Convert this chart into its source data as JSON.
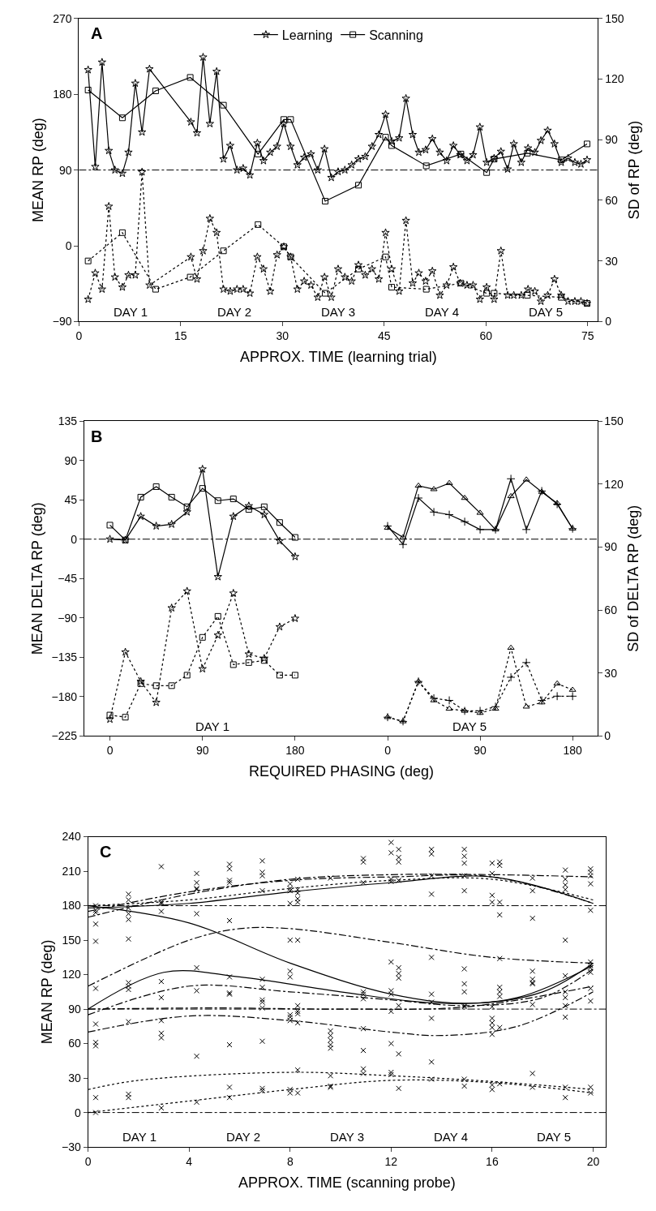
{
  "chart_data": [
    {
      "type": "line",
      "title": "A",
      "xlabel": "APPROX. TIME (learning trial)",
      "ylabel": "MEAN RP (deg)",
      "y2label": "SD of RP (deg)",
      "xlim": [
        0,
        76.5
      ],
      "xticks": [
        0,
        15,
        30,
        45,
        60,
        75
      ],
      "ylim": [
        -90,
        270
      ],
      "yticks": [
        {
          "value": -90,
          "label": "−90"
        },
        0,
        90,
        180,
        270
      ],
      "y2lim": [
        0,
        150
      ],
      "y2ticks": [
        0,
        30,
        60,
        90,
        120,
        150
      ],
      "legend": "top",
      "ref_lines": [
        {
          "axis": "y",
          "value": 90,
          "line_style": "dashed"
        }
      ],
      "annotations": [
        "DAY 1",
        "DAY 2",
        "DAY 3",
        "DAY 4",
        "DAY 5"
      ],
      "series": [
        {
          "name": "Learning",
          "color": "#000000",
          "marker": "star",
          "line_style": "solid",
          "x": [
            1.35,
            2.4,
            3.4,
            4.4,
            5.3,
            6.4,
            7.3,
            8.3,
            9.3,
            10.4,
            16.5,
            17.4,
            18.3,
            19.3,
            20.3,
            21.3,
            22.3,
            23.3,
            24.2,
            25.2,
            26.3,
            27.2,
            28.2,
            29.2,
            30.2,
            31.2,
            32.2,
            33.2,
            34.2,
            35.2,
            36.2,
            37.2,
            38.2,
            39.2,
            40.2,
            41.2,
            42.2,
            43.2,
            44.2,
            45.2,
            46.1,
            47.2,
            48.2,
            49.2,
            50.1,
            51.1,
            52.1,
            53.2,
            54.2,
            55.2,
            56.2,
            57.2,
            58.1,
            59.1,
            60.1,
            61.2,
            62.2,
            63.2,
            64.1,
            65.2,
            66.2,
            67.2,
            68.1,
            69.1,
            70.1,
            71.1,
            72.1,
            73.1,
            74.0,
            74.9
          ],
          "values": [
            209,
            94,
            218,
            113,
            90,
            86,
            111,
            193,
            135,
            210,
            147,
            134,
            224,
            145,
            207,
            103,
            119,
            90,
            92,
            84,
            122,
            101,
            111,
            118,
            145,
            118,
            96,
            105,
            109,
            90,
            115,
            81,
            88,
            90,
            96,
            103,
            106,
            118,
            132,
            156,
            124,
            128,
            175,
            132,
            111,
            114,
            127,
            111,
            101,
            119,
            108,
            101,
            108,
            141,
            99,
            104,
            112,
            91,
            121,
            99,
            116,
            111,
            125,
            137,
            121,
            99,
            104,
            99,
            97,
            102
          ]
        },
        {
          "name": "Scanning",
          "color": "#000000",
          "marker": "square",
          "line_style": "solid",
          "x": [
            1.35,
            6.4,
            11.3,
            16.4,
            21.3,
            26.4,
            30.2,
            31.2,
            36.3,
            41.2,
            45.2,
            46.1,
            51.2,
            56.3,
            60.1,
            61.2,
            66.1,
            71.1,
            74.9
          ],
          "values": [
            185,
            152,
            184,
            200,
            167,
            109,
            150,
            150,
            53,
            72,
            129,
            119,
            95,
            109,
            87,
            103,
            110,
            102,
            121
          ]
        },
        {
          "color": "#000000",
          "marker": "star",
          "line_style": "dotted",
          "axis": "y2",
          "x": [
            1.35,
            2.4,
            3.4,
            4.4,
            5.3,
            6.4,
            7.3,
            8.3,
            9.3,
            10.4,
            16.5,
            17.4,
            18.3,
            19.3,
            20.3,
            21.3,
            22.3,
            23.3,
            24.2,
            25.2,
            26.3,
            27.2,
            28.2,
            29.2,
            30.2,
            31.2,
            32.2,
            33.2,
            34.2,
            35.2,
            36.2,
            37.2,
            38.2,
            39.2,
            40.2,
            41.2,
            42.2,
            43.2,
            44.2,
            45.2,
            46.1,
            47.2,
            48.2,
            49.2,
            50.1,
            51.1,
            52.1,
            53.2,
            54.2,
            55.2,
            56.2,
            57.2,
            58.1,
            59.1,
            60.1,
            61.2,
            62.2,
            63.2,
            64.1,
            65.2,
            66.2,
            67.2,
            68.1,
            69.1,
            70.1,
            71.1,
            72.1,
            73.1,
            74.0,
            74.9
          ],
          "values": [
            11,
            24,
            16,
            57,
            22,
            17,
            23,
            23,
            74,
            18,
            32,
            21,
            35,
            51,
            44,
            16,
            15,
            16,
            16,
            14,
            32,
            26,
            15,
            33,
            37,
            32,
            16,
            20,
            18,
            12,
            22,
            12,
            26,
            22,
            20,
            28,
            23,
            26,
            21,
            44,
            26,
            15,
            50,
            19,
            24,
            20,
            25,
            13,
            18,
            27,
            19,
            18,
            18,
            11,
            17,
            11,
            35,
            13,
            13,
            13,
            16,
            15,
            10,
            13,
            21,
            13,
            10,
            10,
            10,
            9
          ]
        },
        {
          "color": "#000000",
          "marker": "square",
          "line_style": "dotted",
          "axis": "y2",
          "x": [
            1.35,
            6.4,
            11.3,
            16.4,
            21.3,
            26.4,
            30.2,
            31.2,
            36.3,
            41.2,
            45.2,
            46.1,
            51.2,
            56.3,
            60.1,
            61.2,
            66.1,
            71.1,
            74.9
          ],
          "values": [
            30,
            44,
            16,
            22,
            35,
            48,
            37,
            32,
            14,
            26,
            32,
            17,
            16,
            19,
            14,
            14,
            13,
            12,
            9
          ]
        }
      ]
    },
    {
      "type": "line",
      "title": "B",
      "xlabel": "REQUIRED PHASING (deg)",
      "ylabel": "MEAN DELTA RP (deg)",
      "tick_labels": "xy",
      "xlim": [
        -25,
        225
      ],
      "xticks": [
        0,
        90,
        180
      ],
      "ylim": [
        -225,
        135
      ],
      "yticks": [
        {
          "value": -225,
          "label": "−225"
        },
        {
          "value": -180,
          "label": "−180"
        },
        {
          "value": -135,
          "label": "−135"
        },
        {
          "value": -90,
          "label": "−90"
        },
        {
          "value": -45,
          "label": "−45"
        },
        0,
        45,
        90,
        135
      ],
      "y2lim": [
        0,
        150
      ],
      "ref_lines": [
        {
          "axis": "y",
          "value": 0,
          "line_style": "dashed"
        }
      ],
      "annotations": [
        "DAY 1"
      ],
      "series": [
        {
          "color": "#000000",
          "marker": "star",
          "line_style": "solid",
          "x": [
            0,
            15,
            30,
            45,
            60,
            75,
            90,
            105,
            120,
            135,
            150,
            165,
            180
          ],
          "values": [
            0,
            -1,
            26,
            15,
            17,
            31,
            80,
            -43,
            26,
            38,
            28,
            -2,
            -20
          ]
        },
        {
          "color": "#000000",
          "marker": "square",
          "line_style": "solid",
          "x": [
            0,
            15,
            30,
            45,
            60,
            75,
            90,
            105,
            120,
            135,
            150,
            165,
            180
          ],
          "values": [
            16,
            -1,
            48,
            60,
            48,
            37,
            58,
            44,
            46,
            34,
            37,
            19,
            2
          ]
        },
        {
          "color": "#000000",
          "marker": "star",
          "line_style": "dotted",
          "axis": "y2",
          "x": [
            0,
            15,
            30,
            45,
            60,
            75,
            90,
            105,
            120,
            135,
            150,
            165,
            180
          ],
          "values": [
            8,
            40,
            26,
            16,
            61,
            69,
            32,
            48,
            68,
            39,
            37,
            52,
            56
          ]
        },
        {
          "color": "#000000",
          "marker": "square",
          "line_style": "dotted",
          "axis": "y2",
          "x": [
            0,
            15,
            30,
            45,
            60,
            75,
            90,
            105,
            120,
            135,
            150,
            165,
            180
          ],
          "values": [
            10,
            9,
            25,
            24,
            24,
            29,
            47,
            57,
            34,
            35,
            36,
            29,
            29
          ]
        }
      ]
    },
    {
      "type": "line",
      "y2label": "SD of DELTA RP (deg)",
      "tick_labels": "xy2",
      "xlim": [
        -45,
        204
      ],
      "xticks": [
        0,
        90,
        180
      ],
      "ylim": [
        -225,
        135
      ],
      "y2lim": [
        0,
        150
      ],
      "y2ticks": [
        0,
        30,
        60,
        90,
        120,
        150
      ],
      "ref_lines": [
        {
          "axis": "y",
          "value": 0,
          "line_style": "dashed"
        }
      ],
      "annotations": [
        "DAY 5"
      ],
      "series": [
        {
          "color": "#000000",
          "marker": "cross",
          "line_style": "solid",
          "x": [
            0,
            15,
            30,
            45,
            60,
            75,
            90,
            105,
            120,
            135,
            150,
            165,
            180
          ],
          "values": [
            15,
            -6,
            47,
            31,
            28,
            20,
            11,
            11,
            69,
            11,
            55,
            40,
            12
          ]
        },
        {
          "color": "#000000",
          "marker": "triangle",
          "line_style": "solid",
          "x": [
            0,
            15,
            30,
            45,
            60,
            75,
            90,
            105,
            120,
            135,
            150,
            165,
            180
          ],
          "values": [
            13,
            2,
            61,
            57,
            64,
            47,
            30,
            11,
            49,
            68,
            54,
            41,
            12
          ]
        },
        {
          "color": "#000000",
          "marker": "triangle",
          "line_style": "dotted",
          "axis": "y2",
          "x": [
            0,
            15,
            30,
            45,
            60,
            75,
            90,
            105,
            120,
            135,
            150,
            165,
            180
          ],
          "values": [
            9,
            7,
            26,
            17,
            13,
            12,
            11,
            13,
            42,
            14,
            16,
            25,
            22
          ]
        },
        {
          "color": "#000000",
          "marker": "cross",
          "line_style": "dotted",
          "axis": "y2",
          "x": [
            0,
            15,
            30,
            45,
            60,
            75,
            90,
            105,
            120,
            135,
            150,
            165,
            180
          ],
          "values": [
            9,
            7,
            26,
            18,
            17,
            12,
            12,
            14,
            28,
            35,
            17,
            19,
            19
          ]
        }
      ]
    },
    {
      "type": "scatter",
      "title": "C",
      "xlabel": "APPROX. TIME (scanning probe)",
      "ylabel": "MEAN RP (deg)",
      "xlim": [
        0,
        20.5
      ],
      "xticks": [
        0,
        4,
        8,
        12,
        16,
        20
      ],
      "ylim": [
        -30,
        240
      ],
      "yticks": [
        {
          "value": -30,
          "label": "−30"
        },
        0,
        30,
        60,
        90,
        120,
        150,
        180,
        210,
        240
      ],
      "ref_lines": [
        {
          "axis": "y",
          "value": 0,
          "line_style": "dashed"
        },
        {
          "axis": "y",
          "value": 90,
          "line_style": "dashed"
        },
        {
          "axis": "y",
          "value": 180,
          "line_style": "dashed"
        }
      ],
      "annotations": [
        "DAY 1",
        "DAY 2",
        "DAY 3",
        "DAY 4",
        "DAY 5"
      ],
      "series": [
        {
          "type": "scatter",
          "color": "#000000",
          "marker": "cross",
          "x": [
            0.3,
            0.3,
            0.3,
            0.3,
            0.3,
            0.3,
            0.3,
            0.3,
            0.3,
            0.3,
            0.3,
            1.6,
            1.6,
            1.6,
            1.6,
            1.6,
            1.6,
            1.6,
            1.6,
            1.6,
            1.6,
            1.6,
            1.6,
            2.9,
            2.9,
            2.9,
            2.9,
            2.9,
            2.9,
            2.9,
            2.9,
            2.9,
            2.9,
            4.3,
            4.3,
            4.3,
            4.3,
            4.3,
            4.3,
            4.3,
            4.3,
            4.3,
            5.6,
            5.6,
            5.6,
            5.6,
            5.6,
            5.6,
            5.6,
            5.6,
            5.6,
            5.6,
            5.6,
            6.9,
            6.9,
            6.9,
            6.9,
            6.9,
            6.9,
            6.9,
            6.9,
            6.9,
            6.9,
            6.9,
            6.9,
            8.0,
            8.0,
            8.0,
            8.0,
            8.0,
            8.0,
            8.0,
            8.0,
            8.0,
            8.0,
            8.0,
            8.0,
            8.3,
            8.3,
            8.3,
            8.3,
            8.3,
            8.3,
            8.3,
            8.3,
            8.3,
            8.3,
            8.3,
            8.3,
            9.6,
            9.6,
            9.6,
            9.6,
            9.6,
            9.6,
            9.6,
            9.6,
            9.6,
            10.9,
            10.9,
            10.9,
            10.9,
            10.9,
            10.9,
            10.9,
            10.9,
            10.9,
            10.9,
            12.0,
            12.0,
            12.0,
            12.0,
            12.0,
            12.0,
            12.0,
            12.0,
            12.0,
            12.0,
            12.0,
            12.3,
            12.3,
            12.3,
            12.3,
            12.3,
            12.3,
            12.3,
            12.3,
            12.3,
            12.3,
            13.6,
            13.6,
            13.6,
            13.6,
            13.6,
            13.6,
            13.6,
            13.6,
            13.6,
            13.6,
            14.9,
            14.9,
            14.9,
            14.9,
            14.9,
            14.9,
            14.9,
            14.9,
            14.9,
            14.9,
            14.9,
            14.9,
            16.0,
            16.0,
            16.0,
            16.0,
            16.0,
            16.0,
            16.0,
            16.0,
            16.0,
            16.0,
            16.0,
            16.3,
            16.3,
            16.3,
            16.3,
            16.3,
            16.3,
            16.3,
            16.3,
            16.3,
            16.3,
            17.6,
            17.6,
            17.6,
            17.6,
            17.6,
            17.6,
            17.6,
            17.6,
            17.6,
            17.6,
            18.9,
            18.9,
            18.9,
            18.9,
            18.9,
            18.9,
            18.9,
            18.9,
            18.9,
            18.9,
            18.9,
            18.9,
            19.9,
            19.9,
            19.9,
            19.9,
            19.9,
            19.9,
            19.9,
            19.9,
            19.9,
            19.9,
            19.9,
            19.9,
            19.9
          ],
          "values": [
            180,
            176,
            174,
            164,
            149,
            108,
            77,
            61,
            58,
            13,
            0,
            190,
            185,
            178,
            173,
            168,
            151,
            113,
            110,
            107,
            79,
            16,
            13,
            214,
            183,
            182,
            175,
            114,
            100,
            80,
            69,
            65,
            4,
            208,
            200,
            195,
            194,
            173,
            126,
            106,
            49,
            9,
            216,
            212,
            202,
            200,
            167,
            118,
            104,
            103,
            59,
            22,
            13,
            219,
            209,
            206,
            193,
            116,
            109,
            98,
            96,
            91,
            62,
            21,
            19,
            199,
            195,
            193,
            182,
            150,
            123,
            118,
            85,
            83,
            80,
            20,
            17,
            203,
            194,
            191,
            186,
            183,
            150,
            93,
            88,
            86,
            78,
            37,
            17,
            204,
            71,
            67,
            63,
            59,
            56,
            32,
            23,
            22,
            221,
            218,
            200,
            105,
            103,
            99,
            73,
            54,
            38,
            34,
            235,
            226,
            203,
            201,
            131,
            106,
            103,
            88,
            60,
            35,
            33,
            229,
            222,
            218,
            202,
            126,
            121,
            117,
            93,
            51,
            21,
            229,
            225,
            206,
            190,
            135,
            103,
            96,
            82,
            44,
            29,
            229,
            223,
            217,
            206,
            193,
            125,
            112,
            105,
            93,
            92,
            29,
            23,
            217,
            208,
            189,
            183,
            92,
            82,
            78,
            74,
            68,
            24,
            20,
            218,
            215,
            183,
            172,
            134,
            109,
            105,
            101,
            74,
            25,
            204,
            193,
            169,
            123,
            116,
            113,
            112,
            94,
            34,
            22,
            211,
            203,
            198,
            194,
            150,
            119,
            105,
            100,
            93,
            83,
            22,
            13,
            212,
            209,
            206,
            199,
            176,
            131,
            128,
            126,
            122,
            108,
            97,
            22,
            17
          ]
        },
        {
          "type": "line",
          "color": "#000000",
          "marker": "none",
          "line_style": "dashed",
          "x": [
            0,
            4,
            8,
            12,
            16,
            20
          ],
          "values": [
            170,
            190,
            203,
            207,
            207,
            205
          ]
        },
        {
          "type": "line",
          "color": "#000000",
          "marker": "none",
          "line_style": "dashed",
          "x": [
            0,
            4,
            8,
            12,
            16,
            20
          ],
          "values": [
            175,
            192,
            202,
            205,
            205,
            182
          ]
        },
        {
          "type": "line",
          "color": "#000000",
          "marker": "none",
          "line_style": "dotted",
          "x": [
            0,
            4,
            8,
            12,
            16,
            20
          ],
          "values": [
            180,
            185,
            195,
            202,
            203,
            185
          ]
        },
        {
          "type": "line",
          "color": "#000000",
          "marker": "none",
          "line_style": "solid",
          "x": [
            0,
            4,
            8,
            12,
            16,
            20
          ],
          "values": [
            178,
            182,
            192,
            200,
            205,
            182
          ]
        },
        {
          "type": "line",
          "color": "#000000",
          "marker": "none",
          "line_style": "solid",
          "x": [
            0,
            4,
            8,
            12,
            15,
            18,
            20
          ],
          "values": [
            180,
            165,
            130,
            103,
            95,
            105,
            130
          ]
        },
        {
          "type": "line",
          "color": "#000000",
          "marker": "none",
          "line_style": "dashed",
          "x": [
            0,
            4,
            6,
            8,
            12,
            16,
            20
          ],
          "values": [
            110,
            150,
            160,
            160,
            148,
            135,
            130
          ]
        },
        {
          "type": "line",
          "color": "#000000",
          "marker": "none",
          "line_style": "solid",
          "x": [
            0,
            3,
            6,
            10,
            14,
            17,
            20
          ],
          "values": [
            90,
            122,
            118,
            105,
            95,
            100,
            128
          ]
        },
        {
          "type": "line",
          "color": "#000000",
          "marker": "none",
          "line_style": "dashed",
          "x": [
            0,
            4,
            8,
            12,
            15,
            18,
            20
          ],
          "values": [
            85,
            110,
            105,
            98,
            93,
            100,
            125
          ]
        },
        {
          "type": "line",
          "color": "#000000",
          "marker": "none",
          "line_style": "dashed",
          "x": [
            0,
            5,
            10,
            15,
            20
          ],
          "values": [
            90,
            91,
            90,
            92,
            110
          ]
        },
        {
          "type": "line",
          "color": "#000000",
          "marker": "none",
          "line_style": "dashed",
          "x": [
            0,
            4,
            8,
            12,
            14,
            17,
            20
          ],
          "values": [
            70,
            84,
            80,
            70,
            67,
            75,
            105
          ]
        },
        {
          "type": "line",
          "color": "#000000",
          "marker": "none",
          "line_style": "dotted",
          "x": [
            0,
            2,
            8,
            12,
            16,
            20
          ],
          "values": [
            20,
            28,
            35,
            32,
            27,
            20
          ]
        },
        {
          "type": "line",
          "color": "#000000",
          "marker": "none",
          "line_style": "dotted",
          "x": [
            0,
            4,
            8,
            12,
            16,
            20
          ],
          "values": [
            0,
            10,
            20,
            28,
            26,
            17
          ]
        }
      ]
    }
  ]
}
